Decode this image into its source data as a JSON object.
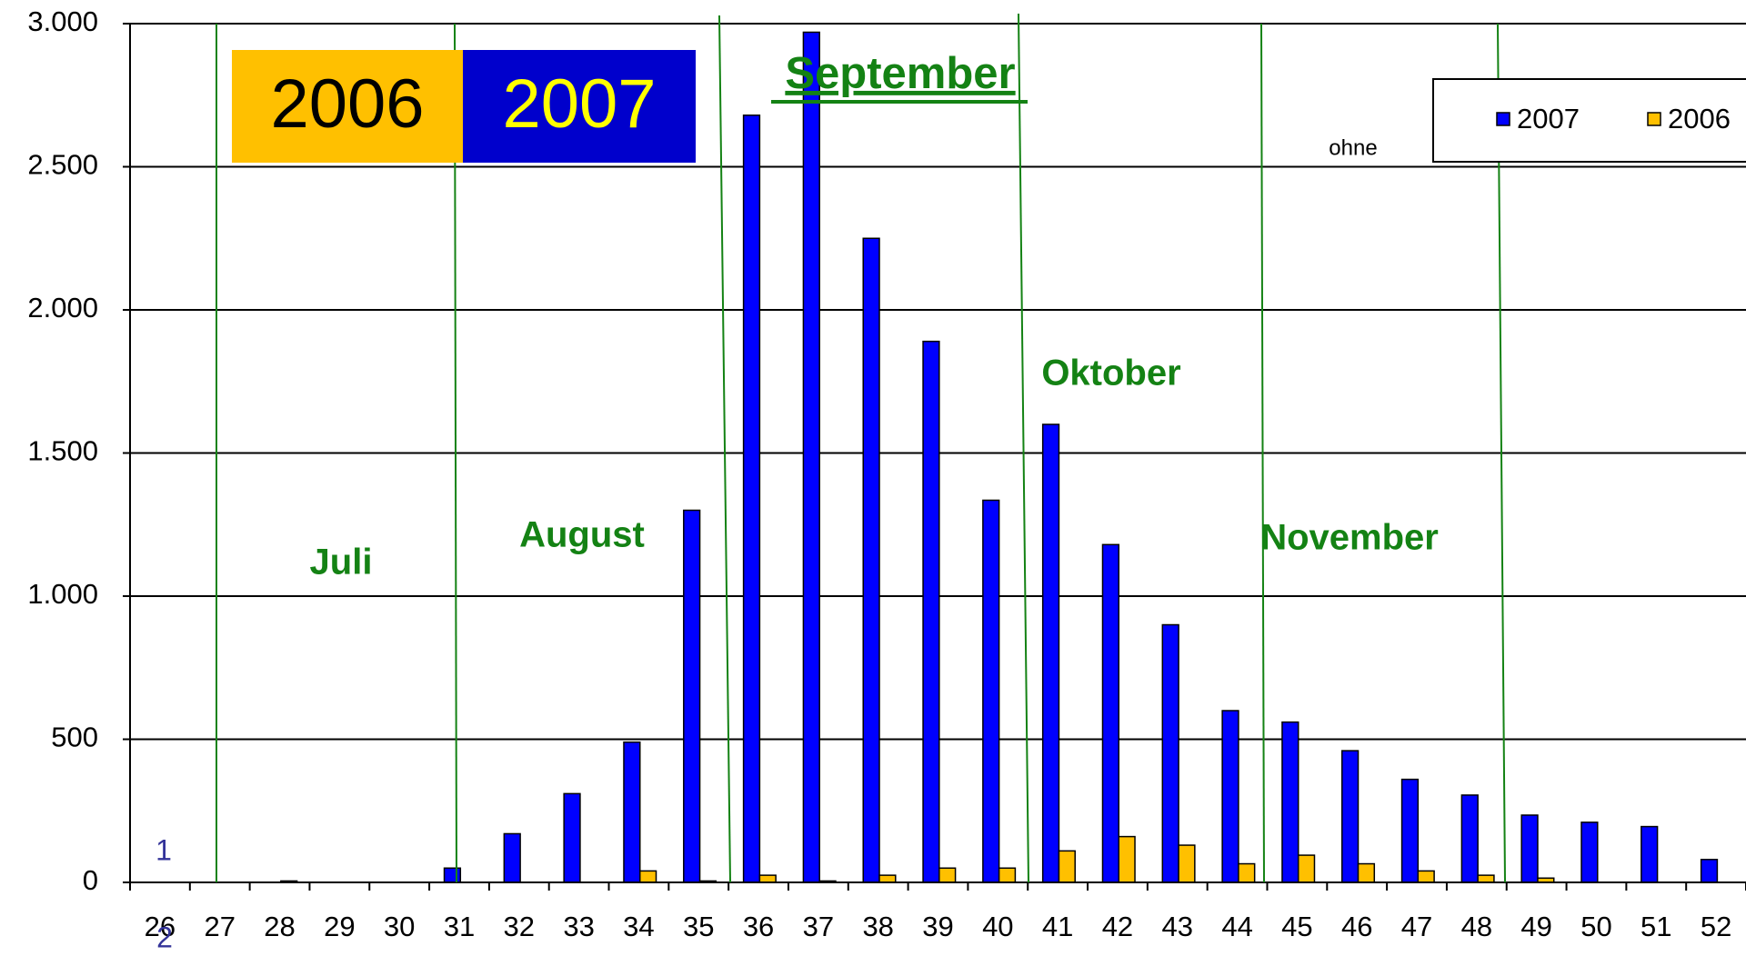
{
  "chart_data": {
    "type": "bar",
    "categories": [
      "26",
      "27",
      "28",
      "29",
      "30",
      "31",
      "32",
      "33",
      "34",
      "35",
      "36",
      "37",
      "38",
      "39",
      "40",
      "41",
      "42",
      "43",
      "44",
      "45",
      "46",
      "47",
      "48",
      "49",
      "50",
      "51",
      "52"
    ],
    "series": [
      {
        "name": "2007",
        "color": "#0000ff",
        "values": [
          0,
          0,
          0,
          0,
          0,
          50,
          170,
          310,
          490,
          1300,
          2680,
          2970,
          2250,
          1890,
          1335,
          1600,
          1180,
          900,
          600,
          560,
          460,
          360,
          305,
          235,
          210,
          195,
          80
        ]
      },
      {
        "name": "2006",
        "color": "#ffc000",
        "values": [
          0,
          0,
          5,
          0,
          0,
          0,
          0,
          0,
          40,
          5,
          25,
          5,
          25,
          50,
          50,
          110,
          160,
          130,
          65,
          95,
          65,
          40,
          25,
          15,
          0,
          0,
          0
        ]
      }
    ],
    "ylim": [
      0,
      3000
    ],
    "yticks": [
      0,
      500,
      {
        "value": 1000,
        "label": "1.000"
      },
      {
        "value": 1500,
        "label": "1.500"
      },
      {
        "value": 2000,
        "label": "2.000"
      },
      {
        "value": 2500,
        "label": "2.500"
      },
      {
        "value": 3000,
        "label": "3.000"
      }
    ],
    "grid": true,
    "legend": "top-right",
    "annotations": {
      "box_2006": "2006",
      "box_2007": "2007",
      "september": "September",
      "oktober": "Oktober",
      "juli": "Juli",
      "august": "August",
      "november": "November",
      "ohne": "ohne",
      "one": "1",
      "two": "2"
    }
  }
}
